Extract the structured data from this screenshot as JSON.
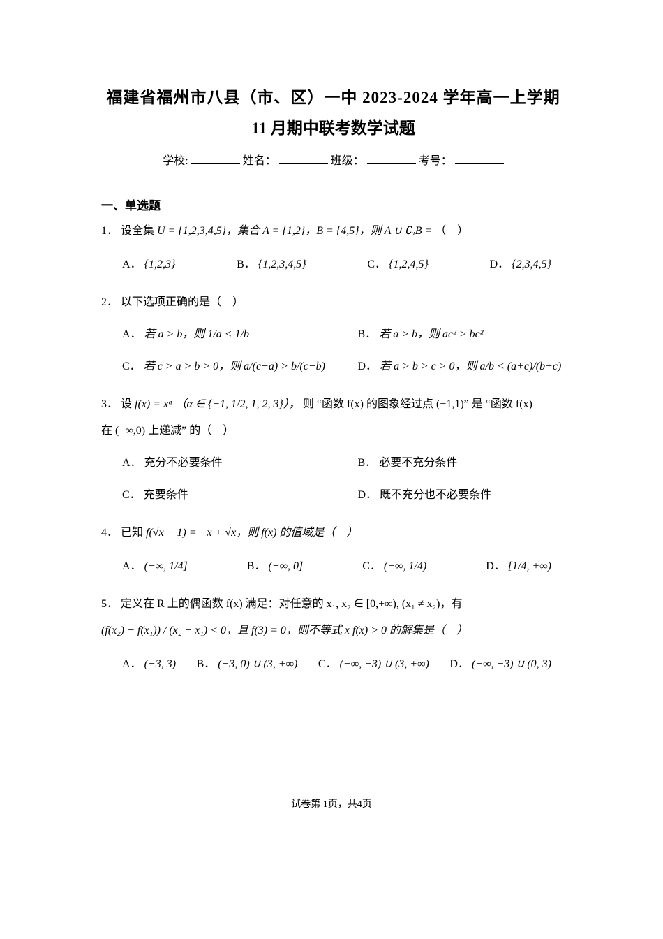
{
  "header": {
    "title_line1": "福建省福州市八县（市、区）一中 2023-2024 学年高一上学期",
    "title_line2": "11 月期中联考数学试题",
    "school_label": "学校:",
    "name_label": "姓名：",
    "class_label": "班级：",
    "examno_label": "考号："
  },
  "section1": {
    "heading": "一、单选题"
  },
  "q1": {
    "num": "1．",
    "stem_prefix": "设全集",
    "stem_math": "U = {1,2,3,4,5}，集合 A = {1,2}，B = {4,5}，则 A ∪ ∁ᵤB = ",
    "paren": "（　）",
    "A": "{1,2,3}",
    "B": "{1,2,3,4,5}",
    "C": "{1,2,4,5}",
    "D": "{2,3,4,5}"
  },
  "q2": {
    "num": "2．",
    "stem": "以下选项正确的是（　）",
    "A": "若 a > b，则 1/a < 1/b",
    "B": "若 a > b，则 ac² > bc²",
    "C": "若 c > a > b > 0，则 a/(c−a) > b/(c−b)",
    "D": "若 a > b > c > 0，则 a/b < (a+c)/(b+c)"
  },
  "q3": {
    "num": "3．",
    "stem_prefix": "设",
    "stem_math": "f(x) = xᵅ （α ∈ {−1, 1/2, 1, 2, 3}），",
    "stem_mid": "则 “函数 f(x) 的图象经过点 (−1,1)” 是 “函数 f(x)",
    "stem_line2": "在 (−∞,0) 上递减” 的（　）",
    "A": "充分不必要条件",
    "B": "必要不充分条件",
    "C": "充要条件",
    "D": "既不充分也不必要条件"
  },
  "q4": {
    "num": "4．",
    "stem_prefix": "已知",
    "stem_math": "f(√x − 1) = −x + √x，则 f(x) 的值域是（　）",
    "A": "(−∞, 1/4]",
    "B": "(−∞, 0]",
    "C": "(−∞, 1/4)",
    "D": "[1/4, +∞)"
  },
  "q5": {
    "num": "5．",
    "stem_prefix": "定义在 R 上的偶函数 f(x) 满足：对任意的 x₁, x₂ ∈ [0,+∞), (x₁ ≠ x₂)，有",
    "stem_line2": "(f(x₂) − f(x₁)) / (x₂ − x₁) < 0，且 f(3) = 0，则不等式 x f(x) > 0 的解集是（　）",
    "A": "(−3, 3)",
    "B": "(−3, 0) ∪ (3, +∞)",
    "C": "(−∞, −3) ∪ (3, +∞)",
    "D": "(−∞, −3) ∪ (0, 3)"
  },
  "footer": {
    "text": "试卷第 1页，共4页"
  },
  "labels": {
    "A": "A．",
    "B": "B．",
    "C": "C．",
    "D": "D．"
  }
}
